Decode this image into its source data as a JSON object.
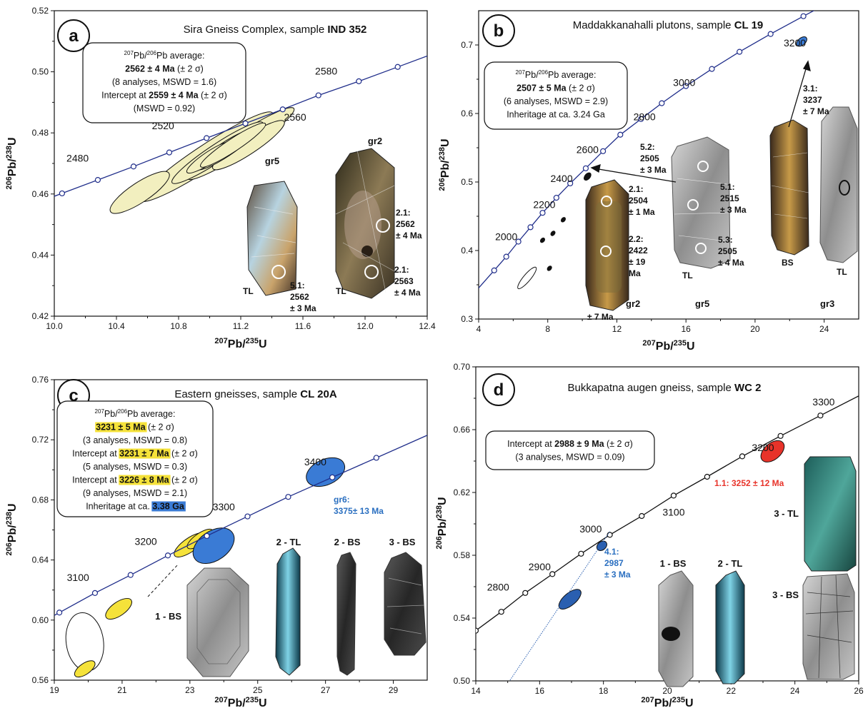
{
  "chart_data": [
    {
      "panel": "a",
      "type": "scatter",
      "title_plain": "Sira Gneiss Complex, sample ",
      "title_bold": "IND 352",
      "xlabel": "207Pb/235U",
      "ylabel": "206Pb/238U",
      "xlim": [
        10.0,
        12.4
      ],
      "ylim": [
        0.42,
        0.52
      ],
      "xticks": [
        "10.0",
        "10.4",
        "10.8",
        "11.2",
        "11.6",
        "12.0",
        "12.4"
      ],
      "yticks": [
        "0.42",
        "0.44",
        "0.46",
        "0.48",
        "0.50",
        "0.52"
      ],
      "concordia_color": "#1f2d8a",
      "concordia_points": [
        [
          10.05,
          0.4602
        ],
        [
          10.28,
          0.4646
        ],
        [
          10.51,
          0.469
        ],
        [
          10.74,
          0.4736
        ],
        [
          10.98,
          0.4783
        ],
        [
          11.23,
          0.4831
        ],
        [
          11.47,
          0.4877
        ],
        [
          11.7,
          0.4923
        ],
        [
          11.96,
          0.4969
        ],
        [
          12.21,
          0.5016
        ]
      ],
      "concordia_ages": [
        {
          "label": "2480",
          "x": 10.15,
          "y": 0.4706
        },
        {
          "label": "2520",
          "x": 10.7,
          "y": 0.4812
        },
        {
          "label": "2560",
          "x": 11.55,
          "y": 0.484
        },
        {
          "label": "2580",
          "x": 11.75,
          "y": 0.4991
        }
      ],
      "ellipses": [
        {
          "cx": 10.98,
          "cy": 0.4722,
          "rx": 1.02,
          "ry": 0.003,
          "angle": 33.5,
          "fill": "#f2efbf"
        },
        {
          "cx": 11.2,
          "cy": 0.4765,
          "rx": 0.82,
          "ry": 0.0024,
          "angle": 33.5,
          "fill": "#f2efbf"
        },
        {
          "cx": 11.05,
          "cy": 0.4735,
          "rx": 0.7,
          "ry": 0.0022,
          "angle": 33.5,
          "fill": "#f2efbf"
        },
        {
          "cx": 10.55,
          "cy": 0.4605,
          "rx": 0.45,
          "ry": 0.0025,
          "angle": 33.5,
          "fill": "#f2efbf"
        },
        {
          "cx": 11.25,
          "cy": 0.476,
          "rx": 0.55,
          "ry": 0.0022,
          "angle": 33.5,
          "fill": "#f2efbf"
        },
        {
          "cx": 11.1,
          "cy": 0.4745,
          "rx": 0.45,
          "ry": 0.0018,
          "angle": 33.5,
          "fill": "#f2efbf"
        },
        {
          "cx": 11.0,
          "cy": 0.472,
          "rx": 0.35,
          "ry": 0.0015,
          "angle": 33.5,
          "fill": "#f2efbf"
        },
        {
          "cx": 11.15,
          "cy": 0.476,
          "rx": 0.5,
          "ry": 0.0016,
          "angle": 33.5,
          "fill": "#f2efbf"
        }
      ],
      "box_lines": [
        {
          "sup": "207",
          "mid": "Pb/",
          "sup2": "206",
          "rest": "Pb average:"
        },
        {
          "bold": "2562 ± 4 Ma",
          "rest": " (± 2 σ)"
        },
        {
          "rest": "(8 analyses, MSWD = 1.6)"
        },
        {
          "rest": "Intercept at ",
          "bold": "2559 ± 4 Ma",
          "after": " (± 2 σ)"
        },
        {
          "rest": "(MSWD = 0.92)"
        }
      ],
      "grains": [
        "gr5",
        "gr2"
      ],
      "annotations": [
        "5.1:",
        "2562",
        "± 3 Ma",
        "2.1:",
        "2562",
        "± 4 Ma",
        "2.1:",
        "2563",
        "± 4 Ma",
        "TL",
        "TL"
      ]
    },
    {
      "panel": "b",
      "type": "scatter",
      "title_plain": "Maddakkanahalli plutons, sample ",
      "title_bold": "CL 19",
      "xlabel": "207Pb/235U",
      "ylabel": "206Pb/238U",
      "xlim": [
        4,
        26
      ],
      "ylim": [
        0.3,
        0.75
      ],
      "xticks": [
        "4",
        "8",
        "12",
        "16",
        "20",
        "24"
      ],
      "yticks": [
        "0.3",
        "0.4",
        "0.5",
        "0.6",
        "0.7"
      ],
      "concordia_color": "#1f2d8a",
      "concordia_points": [
        [
          4.9,
          0.371
        ],
        [
          5.6,
          0.391
        ],
        [
          6.3,
          0.413
        ],
        [
          7.0,
          0.434
        ],
        [
          7.7,
          0.455
        ],
        [
          8.5,
          0.477
        ],
        [
          9.3,
          0.498
        ],
        [
          10.2,
          0.52
        ],
        [
          11.2,
          0.545
        ],
        [
          12.2,
          0.569
        ],
        [
          13.4,
          0.592
        ],
        [
          14.6,
          0.615
        ],
        [
          16.0,
          0.64
        ],
        [
          17.5,
          0.665
        ],
        [
          19.1,
          0.69
        ],
        [
          20.9,
          0.716
        ],
        [
          22.8,
          0.742
        ],
        [
          24.8,
          0.769
        ]
      ],
      "concordia_ages": [
        {
          "label": "2000",
          "x": 5.6,
          "y": 0.415
        },
        {
          "label": "2200",
          "x": 7.8,
          "y": 0.462
        },
        {
          "label": "2400",
          "x": 8.8,
          "y": 0.5
        },
        {
          "label": "2600",
          "x": 10.3,
          "y": 0.542
        },
        {
          "label": "2800",
          "x": 13.6,
          "y": 0.59
        },
        {
          "label": "3000",
          "x": 15.9,
          "y": 0.64
        },
        {
          "label": "3200",
          "x": 22.3,
          "y": 0.698
        }
      ],
      "ellipses": [
        {
          "cx": 6.8,
          "cy": 0.36,
          "rx": 1.6,
          "ry": 0.004,
          "angle": 50,
          "fill": "#ffffff"
        },
        {
          "cx": 8.1,
          "cy": 0.374,
          "rx": 0.3,
          "ry": 0.002,
          "angle": 50,
          "fill": "#111111"
        },
        {
          "cx": 7.7,
          "cy": 0.415,
          "rx": 0.3,
          "ry": 0.002,
          "angle": 50,
          "fill": "#111111"
        },
        {
          "cx": 8.3,
          "cy": 0.425,
          "rx": 0.3,
          "ry": 0.002,
          "angle": 50,
          "fill": "#111111"
        },
        {
          "cx": 8.9,
          "cy": 0.445,
          "rx": 0.3,
          "ry": 0.002,
          "angle": 50,
          "fill": "#111111"
        },
        {
          "cx": 10.3,
          "cy": 0.508,
          "rx": 0.5,
          "ry": 0.003,
          "angle": 50,
          "fill": "#111111"
        },
        {
          "cx": 22.7,
          "cy": 0.705,
          "rx": 0.7,
          "ry": 0.004,
          "angle": 40,
          "fill": "#3a7bd5"
        }
      ],
      "box_lines": [
        {
          "sup": "207",
          "mid": "Pb/",
          "sup2": "206",
          "rest": "Pb average:"
        },
        {
          "bold": "2507 ± 5 Ma",
          "rest": " (± 2 σ)"
        },
        {
          "rest": "(6 analyses, MSWD = 2.9)"
        },
        {
          "rest": "Inheritage at ca. 3.24 Ga"
        }
      ],
      "grains": [
        "gr2",
        "gr5",
        "gr3"
      ],
      "annotations": [
        "5.2:",
        "2505",
        "± 3 Ma",
        "2.1:",
        "2504",
        "± 1 Ma",
        "2.2:",
        "2422",
        "± 19",
        "Ma",
        "5.1:",
        "2515",
        "± 3 Ma",
        "5.3:",
        "2505",
        "± 4 Ma",
        "3.1:",
        "3237",
        "± 7 Ma",
        "TL",
        "BS",
        "TL",
        "BS"
      ]
    },
    {
      "panel": "c",
      "type": "scatter",
      "title_plain": "Eastern gneisses, sample ",
      "title_bold": "CL 20A",
      "xlabel": "207Pb/235U",
      "ylabel": "206Pb/238U",
      "xlim": [
        19,
        30
      ],
      "ylim": [
        0.56,
        0.76
      ],
      "xticks": [
        "19",
        "21",
        "23",
        "25",
        "27",
        "29"
      ],
      "yticks": [
        "0.56",
        "0.60",
        "0.64",
        "0.68",
        "0.72",
        "0.76"
      ],
      "concordia_color": "#1f2d8a",
      "concordia_points": [
        [
          19.15,
          0.605
        ],
        [
          20.2,
          0.618
        ],
        [
          21.25,
          0.63
        ],
        [
          22.35,
          0.643
        ],
        [
          23.5,
          0.656
        ],
        [
          24.7,
          0.669
        ],
        [
          25.9,
          0.682
        ],
        [
          27.2,
          0.695
        ],
        [
          28.5,
          0.708
        ]
      ],
      "concordia_ages": [
        {
          "label": "3100",
          "x": 19.7,
          "y": 0.626
        },
        {
          "label": "3200",
          "x": 21.7,
          "y": 0.65
        },
        {
          "label": "3300",
          "x": 24.0,
          "y": 0.673
        },
        {
          "label": "3400",
          "x": 26.7,
          "y": 0.703
        }
      ],
      "ellipses": [
        {
          "cx": 19.9,
          "cy": 0.5855,
          "rx": 1.1,
          "ry": 0.015,
          "angle": 8,
          "fill": "#ffffff"
        },
        {
          "cx": 19.9,
          "cy": 0.5675,
          "rx": 0.7,
          "ry": 0.0028,
          "angle": 35,
          "fill": "#f5e23a"
        },
        {
          "cx": 20.9,
          "cy": 0.6075,
          "rx": 0.9,
          "ry": 0.0035,
          "angle": 35,
          "fill": "#f5e23a"
        },
        {
          "cx": 23.0,
          "cy": 0.65,
          "rx": 1.1,
          "ry": 0.0035,
          "angle": 35,
          "fill": "#f5e23a"
        },
        {
          "cx": 23.3,
          "cy": 0.654,
          "rx": 0.9,
          "ry": 0.0028,
          "angle": 35,
          "fill": "#f5e23a"
        },
        {
          "cx": 23.7,
          "cy": 0.6495,
          "rx": 1.35,
          "ry": 0.0075,
          "angle": 35,
          "fill": "#3a7bd5"
        },
        {
          "cx": 27.0,
          "cy": 0.6985,
          "rx": 1.2,
          "ry": 0.0065,
          "angle": 25,
          "fill": "#3a7bd5"
        }
      ],
      "box_lines": [
        {
          "sup": "207",
          "mid": "Pb/",
          "sup2": "206",
          "rest": "Pb average:"
        },
        {
          "bold": "3231 ± 5 Ma",
          "hl": "#f5e23a",
          "rest": " (± 2 σ)"
        },
        {
          "rest": "(3 analyses, MSWD = 0.8)"
        },
        {
          "rest": "Intercept at ",
          "bold": "3231 ± 7 Ma",
          "hl": "#f5e23a",
          "after": " (± 2 σ)"
        },
        {
          "rest": "(5 analyses, MSWD = 0.3)"
        },
        {
          "rest": "Intercept at ",
          "bold": "3226 ± 8 Ma",
          "hl": "#f5e23a",
          "after": " (± 2 σ)"
        },
        {
          "rest": "(9 analyses, MSWD = 2.1)"
        },
        {
          "rest": "Inheritage at ca. ",
          "bold": "3.38 Ga",
          "hl": "#3a7bd5"
        }
      ],
      "grains": [
        "1 - BS",
        "2 - TL",
        "2 - BS",
        "3 - BS"
      ],
      "annotations": [
        "gr6:",
        "3375± 13 Ma"
      ]
    },
    {
      "panel": "d",
      "type": "scatter",
      "title_plain": "Bukkapatna augen gneiss, sample ",
      "title_bold": "WC 2",
      "xlabel": "207Pb/235U",
      "ylabel": "206Pb/238U",
      "xlim": [
        14,
        26
      ],
      "ylim": [
        0.5,
        0.7
      ],
      "xticks": [
        "14",
        "16",
        "18",
        "20",
        "22",
        "24",
        "26"
      ],
      "yticks": [
        "0.50",
        "0.54",
        "0.58",
        "0.62",
        "0.66",
        "0.70"
      ],
      "concordia_color": "#111111",
      "concordia_points": [
        [
          14.0,
          0.532
        ],
        [
          14.8,
          0.544
        ],
        [
          15.55,
          0.556
        ],
        [
          16.4,
          0.568
        ],
        [
          17.3,
          0.581
        ],
        [
          18.2,
          0.593
        ],
        [
          19.2,
          0.605
        ],
        [
          20.2,
          0.618
        ],
        [
          21.25,
          0.63
        ],
        [
          22.35,
          0.643
        ],
        [
          23.55,
          0.656
        ],
        [
          24.8,
          0.669
        ]
      ],
      "concordia_ages": [
        {
          "label": "2800",
          "x": 14.7,
          "y": 0.5575
        },
        {
          "label": "2900",
          "x": 16.0,
          "y": 0.5705
        },
        {
          "label": "3000",
          "x": 17.6,
          "y": 0.5945
        },
        {
          "label": "3100",
          "x": 20.2,
          "y": 0.6053
        },
        {
          "label": "3200",
          "x": 23.0,
          "y": 0.6464
        },
        {
          "label": "3300",
          "x": 24.9,
          "y": 0.6755
        }
      ],
      "ellipses": [
        {
          "cx": 16.95,
          "cy": 0.552,
          "rx": 0.85,
          "ry": 0.003,
          "angle": 40,
          "fill": "#2a5fb0"
        },
        {
          "cx": 17.95,
          "cy": 0.586,
          "rx": 0.35,
          "ry": 0.002,
          "angle": 40,
          "fill": "#2a5fb0"
        },
        {
          "cx": 23.3,
          "cy": 0.6462,
          "rx": 0.85,
          "ry": 0.004,
          "angle": 40,
          "fill": "#e8332a"
        }
      ],
      "box_lines": [
        {
          "rest": "Intercept at ",
          "bold": "2988 ± 9 Ma",
          "after": " (± 2 σ)"
        },
        {
          "rest": "(3 analyses, MSWD = 0.09)"
        }
      ],
      "grains": [
        "1 - BS",
        "2 - TL",
        "3 - TL",
        "3 - BS"
      ],
      "annotations": [
        "4.1:",
        "2987",
        "± 3 Ma",
        "1.1: 3252 ± 12 Ma"
      ]
    }
  ],
  "panel_letters": [
    "a",
    "b",
    "c",
    "d"
  ]
}
